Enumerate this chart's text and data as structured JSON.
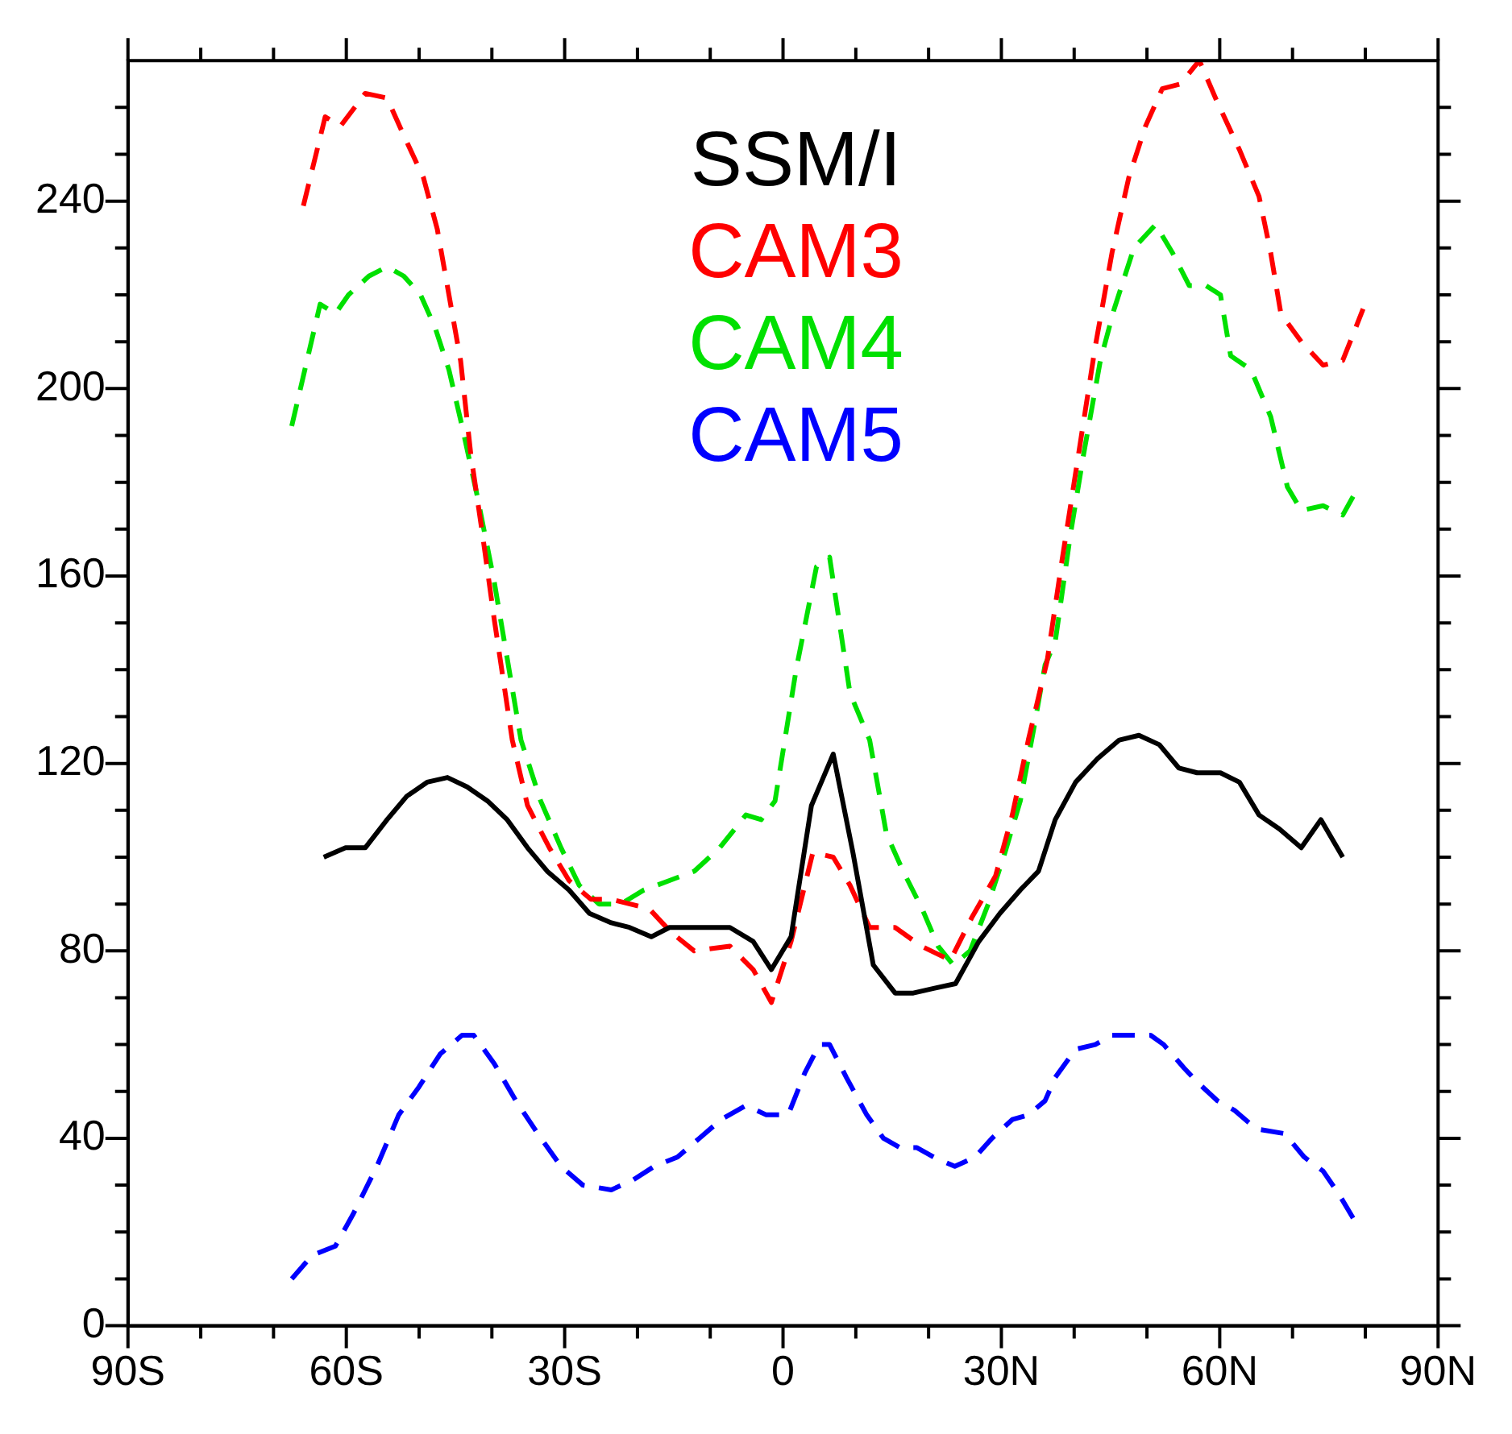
{
  "chart_data": {
    "type": "line",
    "legend": "top",
    "grid": false,
    "xlim": [
      -90,
      90
    ],
    "xticks": [
      {
        "value": -90,
        "label": "90S"
      },
      {
        "value": -80,
        "label": null
      },
      {
        "value": -70,
        "label": null
      },
      {
        "value": -60,
        "label": "60S"
      },
      {
        "value": -50,
        "label": null
      },
      {
        "value": -40,
        "label": null
      },
      {
        "value": -30,
        "label": "30S"
      },
      {
        "value": -20,
        "label": null
      },
      {
        "value": -10,
        "label": null
      },
      0,
      {
        "value": 10,
        "label": null
      },
      {
        "value": 20,
        "label": null
      },
      {
        "value": 30,
        "label": "30N"
      },
      {
        "value": 40,
        "label": null
      },
      {
        "value": 50,
        "label": null
      },
      {
        "value": 60,
        "label": "60N"
      },
      {
        "value": 70,
        "label": null
      },
      {
        "value": 80,
        "label": null
      },
      {
        "value": 90,
        "label": "90N"
      }
    ],
    "ylim": [
      0,
      270
    ],
    "yticks": [
      0,
      {
        "value": 10,
        "label": null
      },
      {
        "value": 20,
        "label": null
      },
      {
        "value": 30,
        "label": null
      },
      40,
      {
        "value": 50,
        "label": null
      },
      {
        "value": 60,
        "label": null
      },
      {
        "value": 70,
        "label": null
      },
      80,
      {
        "value": 90,
        "label": null
      },
      {
        "value": 100,
        "label": null
      },
      {
        "value": 110,
        "label": null
      },
      120,
      {
        "value": 130,
        "label": null
      },
      {
        "value": 140,
        "label": null
      },
      {
        "value": 150,
        "label": null
      },
      160,
      {
        "value": 170,
        "label": null
      },
      {
        "value": 180,
        "label": null
      },
      {
        "value": 190,
        "label": null
      },
      200,
      {
        "value": 210,
        "label": null
      },
      {
        "value": 220,
        "label": null
      },
      {
        "value": 230,
        "label": null
      },
      240,
      {
        "value": 250,
        "label": null
      },
      {
        "value": 260,
        "label": null
      }
    ],
    "series": [
      {
        "name": "SSM/I",
        "color": "#000000",
        "line_style": "solid",
        "x": [
          -63.1,
          -60.1,
          -57.4,
          -54.4,
          -51.7,
          -48.9,
          -46.1,
          -43.4,
          -40.6,
          -37.9,
          -35.1,
          -32.4,
          -29.4,
          -26.6,
          -23.6,
          -21.1,
          -18.1,
          -15.6,
          -13.1,
          -9.9,
          -7.3,
          -4.1,
          -1.6,
          1.1,
          3.9,
          6.9,
          9.6,
          12.4,
          15.4,
          17.9,
          20.7,
          23.7,
          26.9,
          29.8,
          32.6,
          35.1,
          37.4,
          40.2,
          43.2,
          46.2,
          48.9,
          51.7,
          54.4,
          56.9,
          60.1,
          62.7,
          65.4,
          68.2,
          71.2,
          73.9,
          76.9
        ],
        "values": [
          100,
          102,
          102,
          108,
          113,
          116,
          117,
          115,
          112,
          108,
          102,
          97,
          93,
          88,
          86,
          85,
          83,
          85,
          85,
          85,
          85,
          82,
          76,
          83,
          111,
          122,
          101,
          77,
          71,
          71,
          72,
          73,
          82,
          88,
          93,
          97,
          108,
          116,
          121,
          125,
          126,
          124,
          119,
          118,
          118,
          116,
          109,
          106,
          102,
          108,
          100
        ]
      },
      {
        "name": "CAM3",
        "color": "#ff0000",
        "line_style": "dashed",
        "x": [
          -65.9,
          -62.9,
          -60.8,
          -57.4,
          -54.4,
          -52.1,
          -49.4,
          -47.5,
          -45.9,
          -44.3,
          -42.9,
          -41.3,
          -39.7,
          -37.2,
          -35.1,
          -32.1,
          -29.4,
          -26.4,
          -23.6,
          -18.4,
          -15.4,
          -12.2,
          -7.3,
          -4.1,
          -1.6,
          1.1,
          4.1,
          6.9,
          9.2,
          11.9,
          15.4,
          19,
          23,
          25.9,
          29.2,
          31.5,
          33.7,
          36.3,
          38.3,
          40.6,
          42.9,
          45.2,
          47.5,
          49.8,
          52.1,
          54.6,
          57.2,
          59.7,
          62.7,
          65.4,
          67,
          68.4,
          71.2,
          74.2,
          76.9,
          79.7
        ],
        "values": [
          239,
          258,
          256,
          263,
          262,
          254,
          245,
          234,
          220,
          206,
          186,
          169,
          151,
          125,
          111,
          102,
          95,
          91,
          91,
          89,
          84,
          80,
          81,
          76,
          69,
          82,
          101,
          100,
          94,
          85,
          85,
          81,
          78,
          87,
          96,
          109,
          125,
          142,
          163,
          186,
          209,
          229,
          245,
          256,
          264,
          265,
          270,
          261,
          251,
          241,
          229,
          216,
          210,
          205,
          206,
          217
        ]
      },
      {
        "name": "CAM4",
        "color": "#00e000",
        "line_style": "dashed",
        "x": [
          -67.5,
          -65.4,
          -63.6,
          -61.5,
          -59.7,
          -56.9,
          -54.4,
          -52.1,
          -49.8,
          -47.8,
          -45.9,
          -44.1,
          -42,
          -39.7,
          -36,
          -33.3,
          -30.5,
          -28,
          -25.3,
          -22.3,
          -19.1,
          -15.6,
          -12.2,
          -8.7,
          -5.1,
          -3,
          -1.1,
          1.8,
          4.6,
          6.4,
          9.2,
          11.9,
          14.2,
          16.5,
          19.1,
          21.3,
          23.4,
          25.7,
          28.2,
          30.5,
          32.6,
          34.4,
          36,
          37.4,
          39.5,
          41.3,
          43.6,
          45.5,
          48.2,
          51.2,
          53.5,
          55.8,
          58.1,
          60.1,
          61.5,
          64.3,
          67,
          69.3,
          71.2,
          74.2,
          76.9,
          78.7
        ],
        "values": [
          192,
          206,
          218,
          216,
          220,
          224,
          226,
          224,
          220,
          213,
          204,
          192,
          177,
          159,
          125,
          112,
          102,
          94,
          90,
          90,
          93,
          95,
          97,
          102,
          109,
          108,
          112,
          140,
          162,
          164,
          135,
          125,
          105,
          97,
          89,
          81,
          77,
          80,
          90,
          101,
          112,
          127,
          141,
          146,
          169,
          186,
          206,
          217,
          230,
          235,
          229,
          222,
          222,
          220,
          207,
          204,
          194,
          179,
          174,
          175,
          173,
          178
        ]
      },
      {
        "name": "CAM5",
        "color": "#0000ff",
        "line_style": "dashed",
        "x": [
          -67.5,
          -64.7,
          -61.5,
          -59,
          -55.8,
          -52.8,
          -50,
          -47.1,
          -44.1,
          -42.5,
          -39.7,
          -36.7,
          -33.7,
          -30.5,
          -27.5,
          -23.6,
          -20.7,
          -17.7,
          -14.5,
          -11.5,
          -8.5,
          -5.1,
          -2.3,
          0.7,
          3,
          5,
          6.4,
          8.7,
          11.5,
          13.8,
          16.1,
          18.4,
          20.7,
          23.6,
          26.4,
          28.7,
          31.5,
          33.7,
          36,
          37.4,
          40.2,
          42.9,
          45.2,
          47.5,
          50.5,
          52.3,
          55.1,
          56.9,
          59.7,
          62,
          65,
          68.9,
          71.6,
          74.2,
          76.4,
          78.7
        ],
        "values": [
          10,
          15,
          17,
          24,
          34,
          45,
          51,
          58,
          62,
          62,
          56,
          48,
          41,
          34,
          30,
          29,
          31,
          34,
          36,
          40,
          44,
          47,
          45,
          45,
          54,
          60,
          60,
          53,
          45,
          40,
          38,
          38,
          36,
          34,
          36,
          40,
          44,
          45,
          48,
          53,
          59,
          60,
          62,
          62,
          62,
          60,
          55,
          52,
          48,
          46,
          42,
          41,
          36,
          33,
          28,
          22
        ]
      }
    ]
  }
}
